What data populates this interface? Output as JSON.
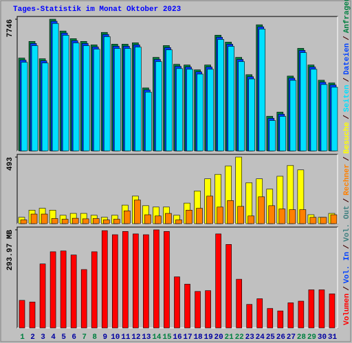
{
  "chart_data": [
    {
      "type": "bar",
      "title": "Tages-Statistik im Monat Oktober 2023",
      "ylim": [
        0,
        7746
      ],
      "yticks": [
        7746
      ],
      "series": [
        {
          "name": "Anfragen",
          "color": "#008040",
          "values": [
            5463,
            6441,
            5422,
            7746,
            7053,
            6604,
            6441,
            6237,
            6971,
            6278,
            6278,
            6360,
            3710,
            5504,
            6197,
            5096,
            5055,
            4770,
            5055,
            6808,
            6400,
            5504,
            4485,
            7420,
            2038,
            2283,
            4403,
            6034,
            5055,
            4159,
            4000
          ]
        },
        {
          "name": "Dateien",
          "color": "#0040ff",
          "values": [
            5343,
            6321,
            5302,
            7626,
            6933,
            6484,
            6321,
            6117,
            6851,
            6158,
            6158,
            6240,
            3590,
            5384,
            6077,
            4976,
            4935,
            4650,
            4935,
            6688,
            6280,
            5384,
            4365,
            7300,
            1918,
            2163,
            4283,
            5914,
            4935,
            4039,
            3880
          ]
        },
        {
          "name": "Seiten",
          "color": "#00e0ff",
          "values": [
            5213,
            6191,
            5172,
            7496,
            6803,
            6354,
            6191,
            5987,
            6721,
            6028,
            6028,
            6110,
            3460,
            5254,
            5947,
            4846,
            4805,
            4520,
            4805,
            6558,
            6150,
            5254,
            4235,
            7170,
            1788,
            2033,
            4153,
            5784,
            4805,
            3909,
            3750
          ]
        }
      ]
    },
    {
      "type": "bar",
      "ylim": [
        0,
        493
      ],
      "yticks": [
        493
      ],
      "series": [
        {
          "name": "Besuche",
          "color": "#ffff00",
          "values": [
            47,
            100,
            114,
            100,
            62,
            76,
            76,
            62,
            47,
            62,
            137,
            204,
            133,
            123,
            123,
            62,
            152,
            242,
            332,
            365,
            427,
            493,
            303,
            332,
            256,
            351,
            431,
            398,
            66,
            47,
            76
          ]
        },
        {
          "name": "Rechner",
          "color": "#ff8000",
          "values": [
            28,
            71,
            71,
            38,
            33,
            40,
            36,
            38,
            28,
            33,
            95,
            175,
            66,
            57,
            76,
            28,
            100,
            114,
            204,
            123,
            171,
            128,
            57,
            199,
            133,
            109,
            104,
            104,
            47,
            47,
            66
          ]
        }
      ]
    },
    {
      "type": "bar",
      "ylim": [
        0,
        293.97
      ],
      "yticks": [
        {
          "value": 293.97,
          "label": "293.97 MB"
        }
      ],
      "categories": [
        "1",
        "2",
        "3",
        "4",
        "5",
        "6",
        "7",
        "8",
        "9",
        "10",
        "11",
        "12",
        "13",
        "14",
        "15",
        "16",
        "17",
        "18",
        "19",
        "20",
        "21",
        "22",
        "23",
        "24",
        "25",
        "26",
        "27",
        "28",
        "29",
        "30",
        "31"
      ],
      "category_colors": [
        "#008040",
        "#0000a0",
        "#0000a0",
        "#0000a0",
        "#0000a0",
        "#0000a0",
        "#008040",
        "#008040",
        "#0000a0",
        "#0000a0",
        "#0000a0",
        "#0000a0",
        "#0000a0",
        "#008040",
        "#008040",
        "#0000a0",
        "#0000a0",
        "#0000a0",
        "#0000a0",
        "#0000a0",
        "#008040",
        "#008040",
        "#0000a0",
        "#0000a0",
        "#0000a0",
        "#0000a0",
        "#0000a0",
        "#008040",
        "#008040",
        "#0000a0",
        "#0000a0"
      ],
      "series": [
        {
          "name": "Volumen",
          "color": "#ff0000",
          "values": [
            82.6,
            77.7,
            191.8,
            228.3,
            230.7,
            218.6,
            174.9,
            228.3,
            291.5,
            279.4,
            289.1,
            281.8,
            279.4,
            293.97,
            289.1,
            153.1,
            131.2,
            109.3,
            111.8,
            281.8,
            250.2,
            145.8,
            70.5,
            87.5,
            58.3,
            51.0,
            75.3,
            80.2,
            114.2,
            114.2,
            102.1
          ]
        }
      ],
      "legend_only": [
        {
          "name": "Vol. In",
          "color": "#0040ff"
        },
        {
          "name": "Vol. Out",
          "color": "#408080"
        }
      ]
    }
  ],
  "separator": "/"
}
